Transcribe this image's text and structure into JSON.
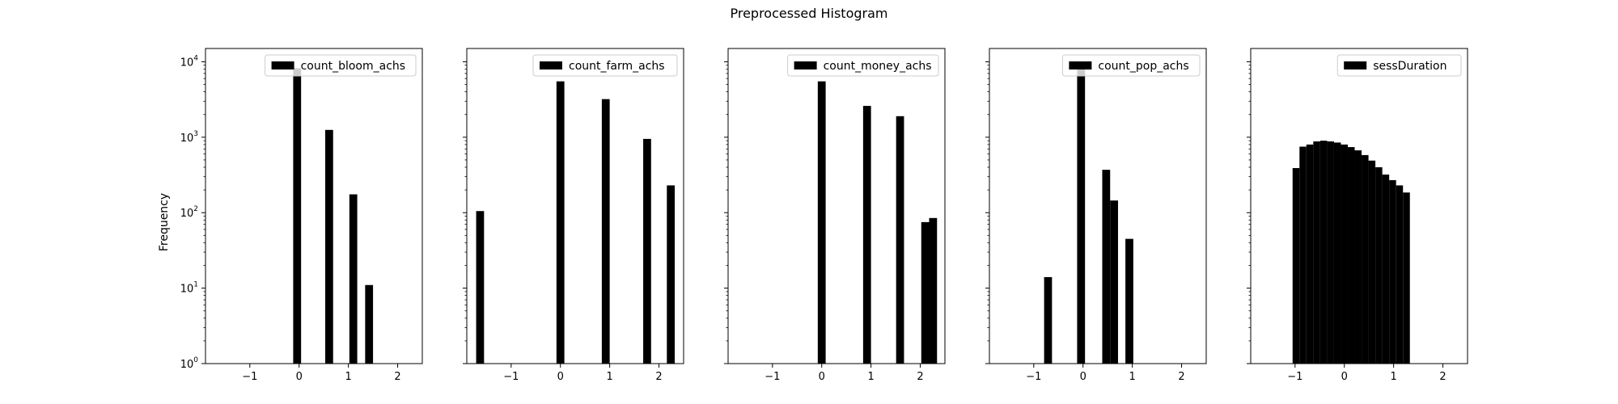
{
  "figure": {
    "title": "Preprocessed Histogram",
    "ylabel": "Frequency"
  },
  "chart_data": {
    "type": "bar",
    "title": "Preprocessed Histogram",
    "ylabel": "Frequency",
    "yscale": "log",
    "ylim": [
      1,
      15000
    ],
    "xlim": [
      -1.9,
      2.5
    ],
    "x_ticks": [
      -1,
      0,
      1,
      2
    ],
    "y_ticks": [
      1,
      10,
      100,
      1000,
      10000
    ],
    "bar_color": "#000000",
    "legend_loc": "upper right",
    "grid": false,
    "panels": [
      {
        "legend": "count_bloom_achs",
        "bins": [
          {
            "x0": -0.12,
            "x1": 0.04,
            "value": 8200
          },
          {
            "x0": 0.53,
            "x1": 0.69,
            "value": 1250
          },
          {
            "x0": 1.02,
            "x1": 1.18,
            "value": 175
          },
          {
            "x0": 1.34,
            "x1": 1.5,
            "value": 11
          }
        ]
      },
      {
        "legend": "count_farm_achs",
        "bins": [
          {
            "x0": -1.71,
            "x1": -1.55,
            "value": 105
          },
          {
            "x0": -0.08,
            "x1": 0.08,
            "value": 5500
          },
          {
            "x0": 0.84,
            "x1": 1.0,
            "value": 3200
          },
          {
            "x0": 1.68,
            "x1": 1.84,
            "value": 950
          },
          {
            "x0": 2.16,
            "x1": 2.32,
            "value": 230
          }
        ]
      },
      {
        "legend": "count_money_achs",
        "bins": [
          {
            "x0": -0.08,
            "x1": 0.08,
            "value": 5500
          },
          {
            "x0": 0.84,
            "x1": 1.0,
            "value": 2600
          },
          {
            "x0": 1.51,
            "x1": 1.67,
            "value": 1900
          },
          {
            "x0": 2.02,
            "x1": 2.18,
            "value": 75
          },
          {
            "x0": 2.18,
            "x1": 2.34,
            "value": 85
          }
        ]
      },
      {
        "legend": "count_pop_achs",
        "bins": [
          {
            "x0": -0.79,
            "x1": -0.63,
            "value": 14
          },
          {
            "x0": -0.12,
            "x1": 0.04,
            "value": 8500
          },
          {
            "x0": 0.39,
            "x1": 0.55,
            "value": 370
          },
          {
            "x0": 0.55,
            "x1": 0.71,
            "value": 145
          },
          {
            "x0": 0.86,
            "x1": 1.02,
            "value": 45
          }
        ]
      },
      {
        "legend": "sessDuration",
        "bins": [
          {
            "x0": -1.05,
            "x1": -0.91,
            "value": 390
          },
          {
            "x0": -0.91,
            "x1": -0.77,
            "value": 750
          },
          {
            "x0": -0.77,
            "x1": -0.63,
            "value": 800
          },
          {
            "x0": -0.63,
            "x1": -0.49,
            "value": 880
          },
          {
            "x0": -0.49,
            "x1": -0.35,
            "value": 900
          },
          {
            "x0": -0.35,
            "x1": -0.21,
            "value": 880
          },
          {
            "x0": -0.21,
            "x1": -0.07,
            "value": 850
          },
          {
            "x0": -0.07,
            "x1": 0.07,
            "value": 800
          },
          {
            "x0": 0.07,
            "x1": 0.21,
            "value": 740
          },
          {
            "x0": 0.21,
            "x1": 0.35,
            "value": 670
          },
          {
            "x0": 0.35,
            "x1": 0.49,
            "value": 580
          },
          {
            "x0": 0.49,
            "x1": 0.63,
            "value": 490
          },
          {
            "x0": 0.63,
            "x1": 0.77,
            "value": 400
          },
          {
            "x0": 0.77,
            "x1": 0.91,
            "value": 320
          },
          {
            "x0": 0.91,
            "x1": 1.05,
            "value": 270
          },
          {
            "x0": 1.05,
            "x1": 1.19,
            "value": 230
          },
          {
            "x0": 1.19,
            "x1": 1.33,
            "value": 185
          }
        ]
      }
    ]
  }
}
